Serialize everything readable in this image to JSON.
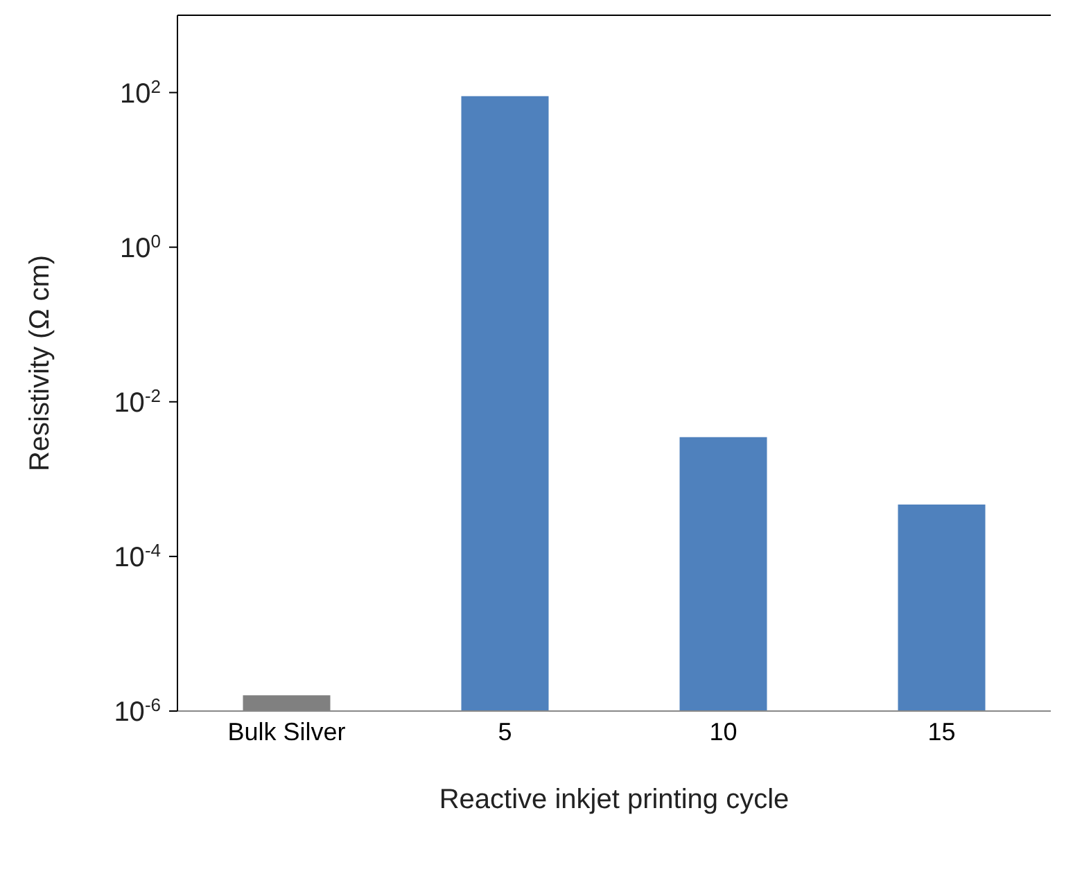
{
  "chart_data": {
    "type": "bar",
    "categories": [
      "Bulk Silver",
      "5",
      "10",
      "15"
    ],
    "values": [
      1.6e-06,
      90,
      0.0035,
      0.00047
    ],
    "colors": [
      "#808080",
      "#4f81bd",
      "#4f81bd",
      "#4f81bd"
    ],
    "xlabel": "Reactive inkjet printing cycle",
    "ylabel": "Resistivity (Ω cm)",
    "log": true,
    "ylim": [
      1e-06,
      1000
    ],
    "yticks": [
      {
        "value": 1e-06,
        "label": "10$^{-6}$"
      },
      {
        "value": 0.0001,
        "label": "10$^{-4}$"
      },
      {
        "value": 0.01,
        "label": "10$^{-2}$"
      },
      {
        "value": 1,
        "label": "10$^{0}$"
      },
      {
        "value": 100,
        "label": "10$^{2}$"
      }
    ],
    "grid": false,
    "legend": false
  }
}
